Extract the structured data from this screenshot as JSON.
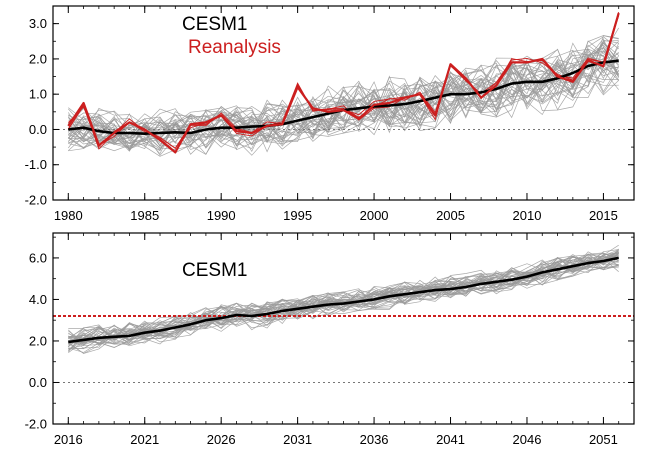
{
  "chart_data": [
    {
      "type": "line",
      "title": "",
      "xlabel": "",
      "ylabel": "",
      "xlim": [
        1979,
        2017
      ],
      "ylim": [
        -2.0,
        3.5
      ],
      "x_ticks": [
        1980,
        1985,
        1990,
        1995,
        2000,
        2005,
        2010,
        2015
      ],
      "y_ticks": [
        -2.0,
        -1.0,
        0.0,
        1.0,
        2.0,
        3.0
      ],
      "x_tick_labels": [
        "1980",
        "1985",
        "1990",
        "1995",
        "2000",
        "2005",
        "2010",
        "2015"
      ],
      "y_tick_labels": [
        "-2.0",
        "-1.0",
        "0.0",
        "1.0",
        "2.0",
        "3.0"
      ],
      "grid": false,
      "reference_line": {
        "y": 0.0,
        "style": "dotted",
        "color": "#777777"
      },
      "legend": {
        "position": "top-left",
        "entries": [
          {
            "label": "CESM1",
            "color": "#000000"
          },
          {
            "label": "Reanalysis",
            "color": "#cc1f1f"
          }
        ]
      },
      "ensemble_members": 40,
      "ensemble_color": "#9a9a9a",
      "x": [
        1980,
        1981,
        1982,
        1983,
        1984,
        1985,
        1986,
        1987,
        1988,
        1989,
        1990,
        1991,
        1992,
        1993,
        1994,
        1995,
        1996,
        1997,
        1998,
        1999,
        2000,
        2001,
        2002,
        2003,
        2004,
        2005,
        2006,
        2007,
        2008,
        2009,
        2010,
        2011,
        2012,
        2013,
        2014,
        2015,
        2016
      ],
      "series": [
        {
          "name": "CESM1",
          "color": "#000000",
          "values": [
            0.0,
            0.05,
            -0.05,
            -0.1,
            -0.1,
            -0.12,
            -0.1,
            -0.08,
            -0.1,
            0.0,
            0.05,
            0.05,
            0.08,
            0.1,
            0.15,
            0.25,
            0.35,
            0.45,
            0.55,
            0.6,
            0.65,
            0.68,
            0.72,
            0.8,
            0.9,
            1.0,
            1.0,
            1.05,
            1.15,
            1.3,
            1.35,
            1.35,
            1.45,
            1.6,
            1.8,
            1.9,
            1.95
          ]
        },
        {
          "name": "Reanalysis",
          "color": "#cc1f1f",
          "values": [
            0.1,
            0.75,
            -0.45,
            -0.1,
            0.2,
            0.0,
            -0.3,
            -0.65,
            0.15,
            0.2,
            0.4,
            -0.05,
            -0.1,
            0.1,
            0.15,
            1.2,
            0.6,
            0.5,
            0.55,
            0.3,
            0.7,
            0.75,
            0.9,
            1.0,
            0.4,
            1.85,
            1.45,
            0.9,
            1.25,
            1.9,
            1.9,
            2.0,
            1.5,
            1.35,
            1.95,
            1.8,
            3.3
          ]
        }
      ]
    },
    {
      "type": "line",
      "title": "",
      "xlabel": "",
      "ylabel": "",
      "xlim": [
        2015,
        2053
      ],
      "ylim": [
        -2.0,
        7.2
      ],
      "x_ticks": [
        2016,
        2021,
        2026,
        2031,
        2036,
        2041,
        2046,
        2051
      ],
      "y_ticks": [
        -2.0,
        0.0,
        2.0,
        4.0,
        6.0
      ],
      "x_tick_labels": [
        "2016",
        "2021",
        "2026",
        "2031",
        "2036",
        "2041",
        "2046",
        "2051"
      ],
      "y_tick_labels": [
        "-2.0",
        "0.0",
        "2.0",
        "4.0",
        "6.0"
      ],
      "grid": false,
      "reference_line": {
        "y": 0.0,
        "style": "dotted",
        "color": "#777777"
      },
      "threshold_line": {
        "y": 3.2,
        "style": "dashed",
        "color": "#cc1f1f"
      },
      "legend": {
        "position": "top-left",
        "entries": [
          {
            "label": "CESM1",
            "color": "#000000"
          }
        ]
      },
      "ensemble_members": 40,
      "ensemble_color": "#9a9a9a",
      "x": [
        2016,
        2017,
        2018,
        2019,
        2020,
        2021,
        2022,
        2023,
        2024,
        2025,
        2026,
        2027,
        2028,
        2029,
        2030,
        2031,
        2032,
        2033,
        2034,
        2035,
        2036,
        2037,
        2038,
        2039,
        2040,
        2041,
        2042,
        2043,
        2044,
        2045,
        2046,
        2047,
        2048,
        2049,
        2050,
        2051,
        2052
      ],
      "series": [
        {
          "name": "CESM1",
          "color": "#000000",
          "values": [
            1.95,
            2.05,
            2.15,
            2.2,
            2.25,
            2.4,
            2.5,
            2.65,
            2.8,
            3.0,
            3.1,
            3.25,
            3.2,
            3.3,
            3.45,
            3.55,
            3.65,
            3.75,
            3.8,
            3.9,
            4.0,
            4.15,
            4.25,
            4.35,
            4.45,
            4.5,
            4.6,
            4.75,
            4.85,
            4.95,
            5.1,
            5.3,
            5.45,
            5.6,
            5.75,
            5.85,
            6.0
          ]
        }
      ]
    }
  ]
}
